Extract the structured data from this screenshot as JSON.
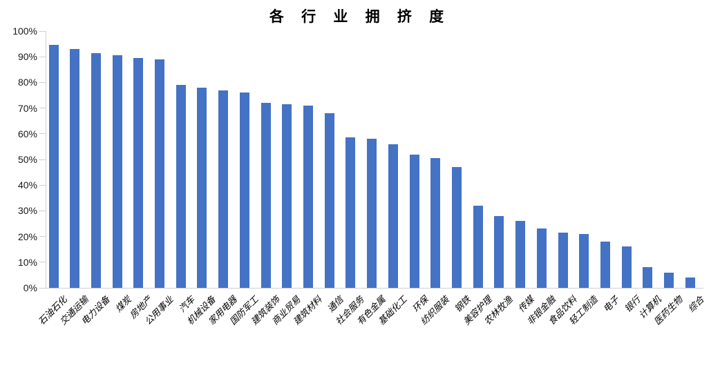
{
  "chart_data": {
    "type": "bar",
    "title": "各 行 业 拥 挤 度",
    "categories": [
      "石油石化",
      "交通运输",
      "电力设备",
      "煤炭",
      "房地产",
      "公用事业",
      "汽车",
      "机械设备",
      "家用电器",
      "国防军工",
      "建筑装饰",
      "商业贸易",
      "建筑材料",
      "通信",
      "社会服务",
      "有色金属",
      "基础化工",
      "环保",
      "纺织服装",
      "钢铁",
      "美容护理",
      "农林牧渔",
      "传媒",
      "非银金融",
      "食品饮料",
      "轻工制造",
      "电子",
      "银行",
      "计算机",
      "医药生物",
      "综合"
    ],
    "values": [
      94.5,
      93,
      91.5,
      90.5,
      89.5,
      89,
      79,
      78,
      77,
      76,
      72,
      71.5,
      71,
      68,
      58.5,
      58,
      56,
      52,
      50.5,
      47,
      32,
      28,
      26,
      23,
      21.5,
      21,
      18,
      16,
      8,
      6,
      4
    ],
    "value_unit": "%",
    "xlabel": "",
    "ylabel": "",
    "ylim": [
      0,
      100
    ],
    "ytick_step": 10,
    "ytick_labels": [
      "100%",
      "90%",
      "80%",
      "70%",
      "60%",
      "50%",
      "40%",
      "30%",
      "20%",
      "10%",
      "0%"
    ],
    "grid": false,
    "legend": false,
    "colors": {
      "bar": "#4472C4",
      "axis_line": "#CFCFCF",
      "title_text": "#000000",
      "axis_text": "#1A1A1A"
    }
  }
}
